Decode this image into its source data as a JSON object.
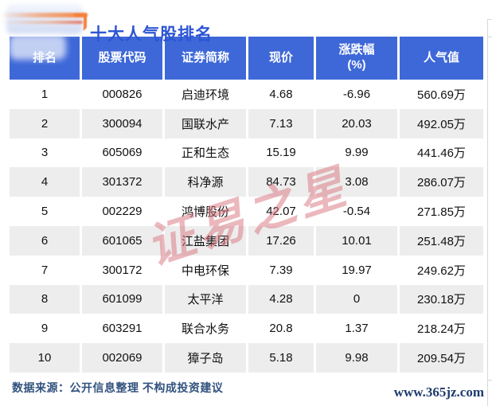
{
  "title": {
    "text": "十大人气股排名"
  },
  "chart_data": {
    "type": "table",
    "title": "十大人气股排名",
    "columns": [
      "排名",
      "股票代码",
      "证券简称",
      "现价",
      "涨跌幅(%)",
      "人气值"
    ],
    "rows": [
      [
        "1",
        "000826",
        "启迪环境",
        "4.68",
        "-6.96",
        "560.69万"
      ],
      [
        "2",
        "300094",
        "国联水产",
        "7.13",
        "20.03",
        "492.05万"
      ],
      [
        "3",
        "605069",
        "正和生态",
        "15.19",
        "9.99",
        "441.46万"
      ],
      [
        "4",
        "301372",
        "科净源",
        "84.73",
        "3.08",
        "286.07万"
      ],
      [
        "5",
        "002229",
        "鸿博股份",
        "42.07",
        "-0.54",
        "271.85万"
      ],
      [
        "6",
        "601065",
        "江盐集团",
        "17.26",
        "10.01",
        "251.48万"
      ],
      [
        "7",
        "300172",
        "中电环保",
        "7.39",
        "19.97",
        "249.62万"
      ],
      [
        "8",
        "601099",
        "太平洋",
        "4.28",
        "0",
        "230.18万"
      ],
      [
        "9",
        "603291",
        "联合水务",
        "20.8",
        "1.37",
        "218.24万"
      ],
      [
        "10",
        "002069",
        "獐子岛",
        "5.18",
        "9.98",
        "209.54万"
      ]
    ]
  },
  "ui": {
    "header_labels": [
      "排名",
      "股票代码",
      "证券简称",
      "现价",
      "涨跌幅\n(%)",
      "人气值"
    ]
  },
  "watermark": {
    "text": "证易之星"
  },
  "footer": {
    "source": "数据来源：公开信息整理  不构成投资建议",
    "site": "www.365jz.com"
  },
  "colors": {
    "header_blue": "#3E68D8",
    "title_blue": "#2D55D4",
    "row_stripe": "#EDEDED",
    "text": "#111111",
    "footer_navy": "#31527E",
    "site_navy": "#1F3B6E",
    "watermark_pink": "#D9747E",
    "logo_orange": "#F5813C",
    "edge_line": "#D8D8D8"
  }
}
